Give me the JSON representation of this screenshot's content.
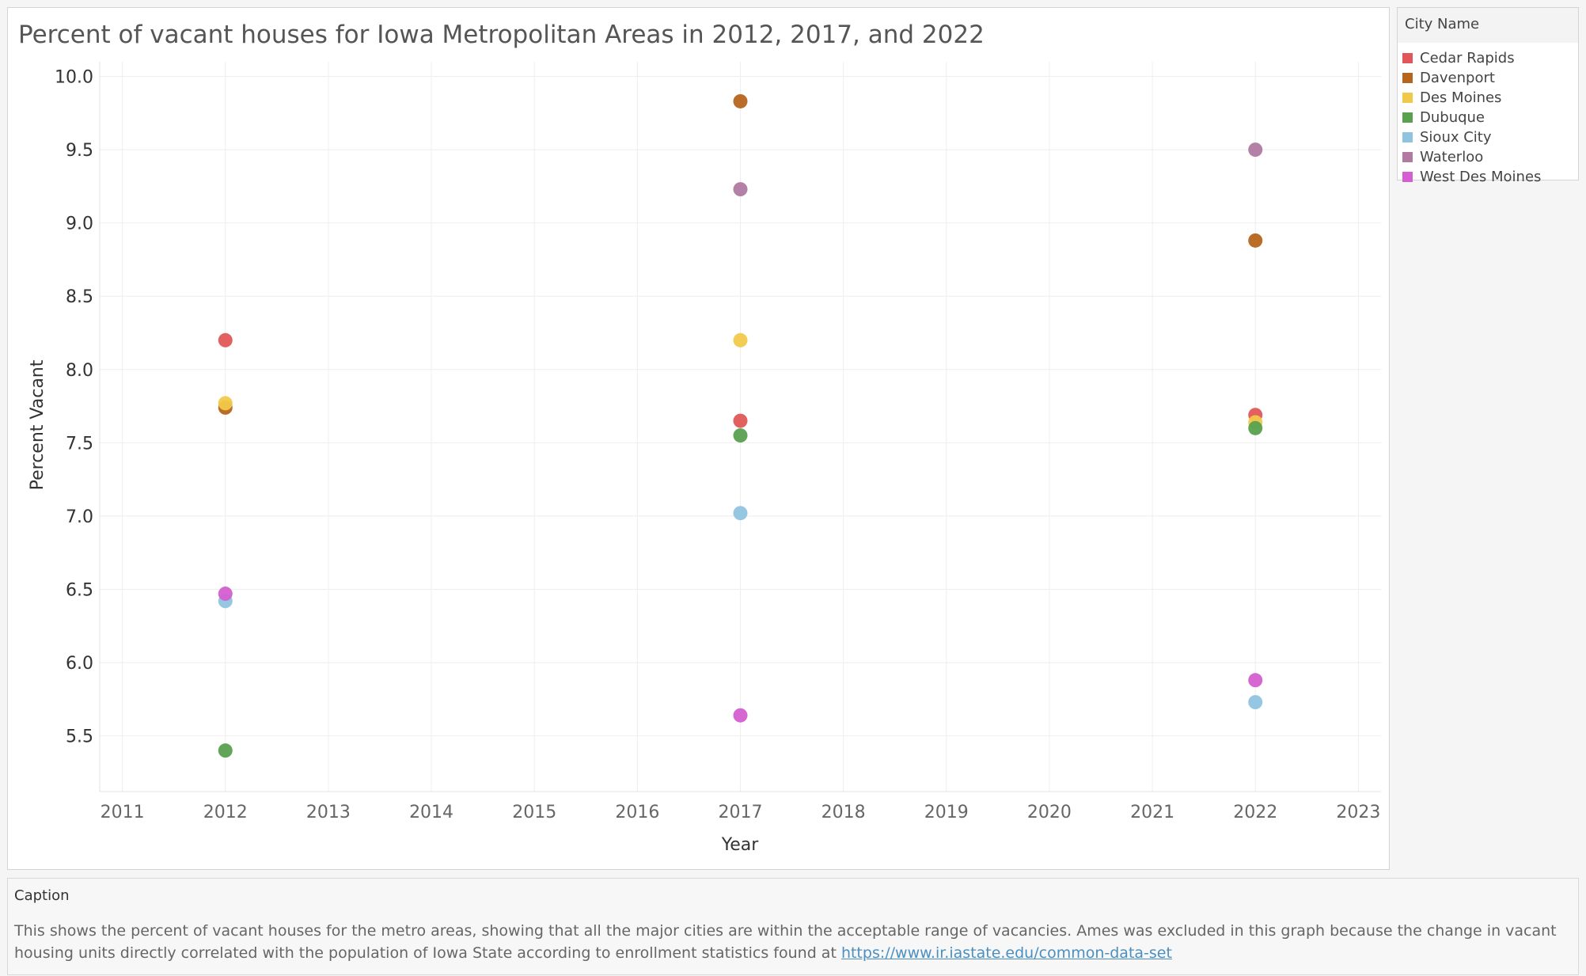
{
  "chart_title": "Percent of vacant houses for Iowa Metropolitan Areas in 2012, 2017, and 2022",
  "legend": {
    "title": "City Name",
    "items": [
      {
        "label": "Cedar Rapids",
        "color": "#e15759"
      },
      {
        "label": "Davenport",
        "color": "#b5651d"
      },
      {
        "label": "Des Moines",
        "color": "#f1c94a"
      },
      {
        "label": "Dubuque",
        "color": "#59a14f"
      },
      {
        "label": "Sioux City",
        "color": "#8fc4e0"
      },
      {
        "label": "Waterloo",
        "color": "#b07aa1"
      },
      {
        "label": "West Des Moines",
        "color": "#d45fd0"
      }
    ]
  },
  "caption": {
    "label": "Caption",
    "text": "This shows the percent of vacant houses for the metro areas, showing that all the major cities are within the acceptable range of vacancies. Ames was excluded in this graph because the change in vacant housing units directly correlated with the population of Iowa State according to enrollment statistics found at ",
    "link": "https://www.ir.iastate.edu/common-data-set"
  },
  "chart_data": {
    "type": "scatter",
    "title": "Percent of vacant houses for Iowa Metropolitan Areas in 2012, 2017, and 2022",
    "xlabel": "Year",
    "ylabel": "Percent Vacant",
    "xlim": [
      2010.78,
      2023.22
    ],
    "ylim": [
      5.12,
      10.1
    ],
    "x_ticks": [
      2011,
      2012,
      2013,
      2014,
      2015,
      2016,
      2017,
      2018,
      2019,
      2020,
      2021,
      2022,
      2023
    ],
    "y_ticks": [
      5.5,
      6.0,
      6.5,
      7.0,
      7.5,
      8.0,
      8.5,
      9.0,
      9.5,
      10.0
    ],
    "y_tick_labels": [
      "5.5",
      "6.0",
      "6.5",
      "7.0",
      "7.5",
      "8.0",
      "8.5",
      "9.0",
      "9.5",
      "10.0"
    ],
    "grid": true,
    "legend_position": "right",
    "x": [
      2012,
      2017,
      2022
    ],
    "series": [
      {
        "name": "Cedar Rapids",
        "color": "#e15759",
        "values": [
          8.2,
          7.65,
          7.69
        ]
      },
      {
        "name": "Davenport",
        "color": "#b5651d",
        "values": [
          7.74,
          9.83,
          8.88
        ]
      },
      {
        "name": "Des Moines",
        "color": "#f1c94a",
        "values": [
          7.77,
          8.2,
          7.64
        ]
      },
      {
        "name": "Dubuque",
        "color": "#59a14f",
        "values": [
          5.4,
          7.55,
          7.6
        ]
      },
      {
        "name": "Sioux City",
        "color": "#8fc4e0",
        "values": [
          6.42,
          7.02,
          5.73
        ]
      },
      {
        "name": "Waterloo",
        "color": "#b07aa1",
        "values": [
          null,
          9.23,
          9.5
        ]
      },
      {
        "name": "West Des Moines",
        "color": "#d45fd0",
        "values": [
          6.47,
          5.64,
          5.88
        ]
      }
    ]
  }
}
